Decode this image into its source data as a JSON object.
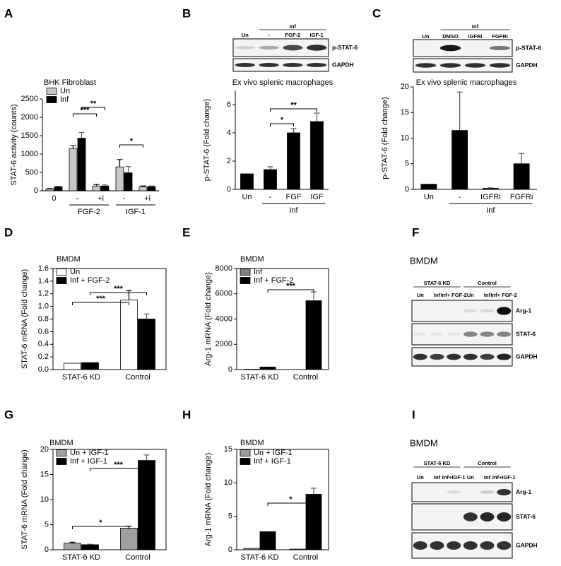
{
  "chart_data": [
    {
      "panel": "A",
      "type": "bar",
      "title": "BHK Fibroblast",
      "y_label": "STAT-6 activity (counts)",
      "categories": [
        "0",
        "-",
        "+i",
        "-",
        "+i"
      ],
      "group_labels": [
        "FGF-2",
        "IGF-1"
      ],
      "series": [
        {
          "name": "Un",
          "color": "#c8c8c8",
          "values": [
            50,
            1150,
            130,
            650,
            110
          ],
          "errors": [
            10,
            80,
            40,
            200,
            20
          ]
        },
        {
          "name": "Inf",
          "color": "#000000",
          "values": [
            110,
            1430,
            130,
            490,
            110
          ],
          "errors": [
            10,
            160,
            30,
            170,
            20
          ]
        }
      ],
      "ylim": [
        0,
        2500
      ],
      "yticks": [
        0,
        500,
        1000,
        1500,
        2000,
        2500
      ],
      "annotations": [
        "***",
        "**",
        "*"
      ]
    },
    {
      "panel": "B",
      "type": "bar",
      "title": "Ex vivo splenic macrophages",
      "y_label": "p-STAT-6  (Fold change)",
      "categories": [
        "Un",
        "-",
        "FGF",
        "IGF"
      ],
      "group_labels": [
        "Inf"
      ],
      "color": "#000000",
      "values": [
        1.1,
        1.4,
        4.0,
        4.8
      ],
      "errors": [
        0,
        0.2,
        0.3,
        0.6
      ],
      "ylim": [
        0,
        7
      ],
      "yticks": [
        0,
        2,
        4,
        6
      ],
      "annotations": [
        "*",
        "**"
      ]
    },
    {
      "panel": "C",
      "type": "bar",
      "title": "Ex vivo splenic macrophages",
      "y_label": "p-STAT-6  (Fold change)",
      "categories": [
        "Un",
        "-",
        "IGFRi",
        "FGFRi"
      ],
      "group_labels": [
        "Inf"
      ],
      "color": "#000000",
      "values": [
        1,
        11.5,
        0.2,
        5
      ],
      "errors": [
        0,
        7.5,
        0.1,
        2
      ],
      "ylim": [
        0,
        20
      ],
      "yticks": [
        0,
        5,
        10,
        15,
        20
      ],
      "annotations": []
    },
    {
      "panel": "D",
      "type": "bar",
      "title": "BMDM",
      "y_label": "STAT-6 mRNA (Fold change)",
      "categories": [
        "STAT-6 KD",
        "Control"
      ],
      "series": [
        {
          "name": "Un",
          "color": "#ffffff",
          "values": [
            0.1,
            1.1
          ],
          "errors": [
            0,
            0.15
          ]
        },
        {
          "name": "Inf + FGF-2",
          "color": "#000000",
          "values": [
            0.11,
            0.8
          ],
          "errors": [
            0,
            0.08
          ]
        }
      ],
      "ylim": [
        0,
        1.6
      ],
      "yticks": [
        {
          "value": 0,
          "label": "0.0"
        },
        0.2,
        0.4,
        0.6,
        0.8,
        {
          "value": 1,
          "label": "1.0"
        },
        1.2,
        1.4,
        1.6
      ],
      "annotations": [
        "***",
        "***"
      ]
    },
    {
      "panel": "E",
      "type": "bar",
      "title": "BMDM",
      "y_label": "Arg-1 mRNA (Fold change)",
      "categories": [
        "STAT-6 KD",
        "Control"
      ],
      "series": [
        {
          "name": "Inf",
          "color": "#808080",
          "values": [
            30,
            0
          ],
          "errors": [
            0,
            0
          ]
        },
        {
          "name": "Inf + FGF-2",
          "color": "#000000",
          "values": [
            200,
            5450
          ],
          "errors": [
            0,
            700
          ]
        }
      ],
      "ylim": [
        0,
        8000
      ],
      "yticks": [
        0,
        2000,
        4000,
        6000,
        8000
      ],
      "annotations": [
        "***"
      ]
    },
    {
      "panel": "G",
      "type": "bar",
      "title": "BMDM",
      "y_label": "STAT-6 mRNA (Fold change)",
      "categories": [
        "STAT-6 KD",
        "Control"
      ],
      "series": [
        {
          "name": "Un + IGF-1",
          "color": "#a0a0a0",
          "values": [
            1.3,
            4.3
          ],
          "errors": [
            0.2,
            0.4
          ]
        },
        {
          "name": "Inf + IGF-1",
          "color": "#000000",
          "values": [
            1.0,
            17.8
          ],
          "errors": [
            0.1,
            1.1
          ]
        }
      ],
      "ylim": [
        0,
        20
      ],
      "yticks": [
        0,
        5,
        10,
        15,
        20
      ],
      "annotations": [
        "*",
        "***"
      ]
    },
    {
      "panel": "H",
      "type": "bar",
      "title": "BMDM",
      "y_label": "Arg-1 mRNA (Fold change)",
      "categories": [
        "STAT-6 KD",
        "Control"
      ],
      "series": [
        {
          "name": "Un + IGF-1",
          "color": "#a0a0a0",
          "values": [
            0.2,
            0.1
          ],
          "errors": [
            0,
            0
          ]
        },
        {
          "name": "Inf + IGF-1",
          "color": "#000000",
          "values": [
            2.7,
            8.3
          ],
          "errors": [
            0,
            0.9
          ]
        }
      ],
      "ylim": [
        0,
        15
      ],
      "yticks": [
        0,
        5,
        10,
        15
      ],
      "annotations": [
        "*"
      ]
    }
  ],
  "blots": [
    {
      "header": "Inf",
      "lanes": [
        "Un",
        "-",
        "FGF-2",
        "IGF-1"
      ],
      "bands": [
        "p-STAT-6",
        "GAPDH"
      ]
    },
    {
      "header": "Inf",
      "lanes": [
        "Un",
        "DMSO",
        "IGFRi",
        "FGFRi"
      ],
      "bands": [
        "p-STAT-6",
        "GAPDH"
      ]
    },
    {
      "panel": "F",
      "title": "BMDM",
      "groups": [
        "STAT-6 KD",
        "Control"
      ],
      "lanes": [
        "Un",
        "Inf",
        "Inf+ FGF-2",
        "Un",
        "Inf",
        "Inf+ FGF-2"
      ],
      "bands": [
        "Arg-1",
        "STAT-6",
        "GAPDH"
      ]
    },
    {
      "panel": "I",
      "title": "BMDM",
      "groups": [
        "STAT-6 KD",
        "Control"
      ],
      "lanes": [
        "Un",
        "Inf",
        "Inf+IGF-1",
        "Un",
        "Inf",
        "Inf+IGF-1"
      ],
      "bands": [
        "Arg-1",
        "STAT-6",
        "GAPDH"
      ]
    }
  ]
}
